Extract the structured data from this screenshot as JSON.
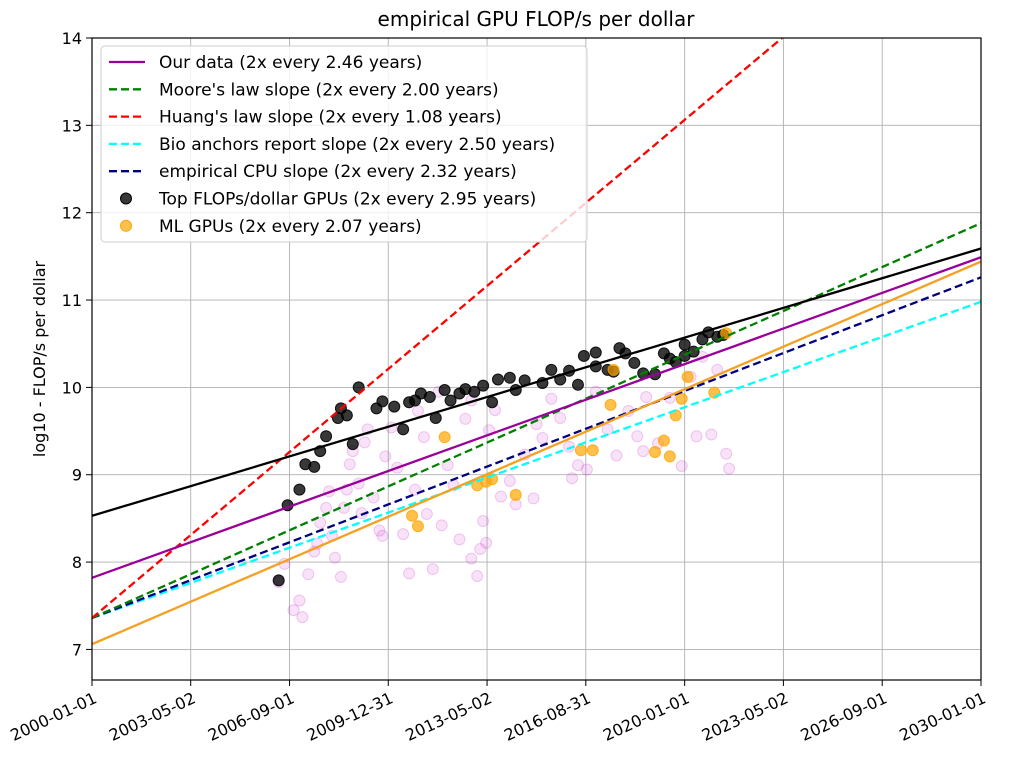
{
  "chart_data": {
    "type": "scatter",
    "title": "empirical GPU FLOP/s per dollar",
    "xlabel": "",
    "ylabel": "log10 - FLOP/s per dollar",
    "x_axis_type": "date",
    "xlim": [
      "2000-01-01",
      "2030-01-01"
    ],
    "ylim": [
      6.65,
      14.0
    ],
    "x_ticks": [
      "2000-01-01",
      "2003-05-02",
      "2006-09-01",
      "2009-12-31",
      "2013-05-02",
      "2016-08-31",
      "2020-01-01",
      "2023-05-02",
      "2026-09-01",
      "2030-01-01"
    ],
    "y_ticks": [
      7,
      8,
      9,
      10,
      11,
      12,
      13,
      14
    ],
    "grid": true,
    "legend_position": "top-left",
    "lines": [
      {
        "label": "Our data (2x every 2.46 years)",
        "color": "#990099",
        "dash": "solid",
        "in_legend": true,
        "points": [
          [
            "2000-01-01",
            7.82
          ],
          [
            "2030-01-01",
            11.49
          ]
        ]
      },
      {
        "label": "Moore's law slope (2x every 2.00 years)",
        "color": "#008000",
        "dash": "dashed",
        "in_legend": true,
        "points": [
          [
            "2000-01-01",
            7.36
          ],
          [
            "2030-01-01",
            11.88
          ]
        ]
      },
      {
        "label": "Huang's law slope (2x every 1.08 years)",
        "color": "#ff0000",
        "dash": "dashed",
        "in_legend": true,
        "points": [
          [
            "2000-01-01",
            7.36
          ],
          [
            "2023-04-15",
            14.0
          ]
        ]
      },
      {
        "label": "Bio anchors report slope (2x every 2.50 years)",
        "color": "#00ffff",
        "dash": "dashed",
        "in_legend": true,
        "points": [
          [
            "2000-01-01",
            7.36
          ],
          [
            "2030-01-01",
            10.98
          ]
        ]
      },
      {
        "label": "empirical CPU slope (2x every 2.32 years)",
        "color": "#000080",
        "dash": "dashed",
        "in_legend": true,
        "points": [
          [
            "2000-01-01",
            7.36
          ],
          [
            "2030-01-01",
            11.26
          ]
        ]
      },
      {
        "label": "",
        "color": "#000000",
        "dash": "solid",
        "in_legend": false,
        "points": [
          [
            "2000-01-01",
            8.53
          ],
          [
            "2030-01-01",
            11.59
          ]
        ]
      },
      {
        "label": "",
        "color": "#f5a020",
        "dash": "solid",
        "in_legend": false,
        "points": [
          [
            "2000-01-01",
            7.06
          ],
          [
            "2030-01-01",
            11.44
          ]
        ]
      }
    ],
    "scatter_series": [
      {
        "name": "Top FLOPs/dollar GPUs (2x every 2.95 years)",
        "color": "#000000",
        "alpha": 0.78,
        "in_legend": true,
        "points": [
          [
            2006.3,
            7.79
          ],
          [
            2006.6,
            8.65
          ],
          [
            2007.0,
            8.83
          ],
          [
            2007.2,
            9.12
          ],
          [
            2007.5,
            9.09
          ],
          [
            2007.7,
            9.27
          ],
          [
            2007.9,
            9.44
          ],
          [
            2008.3,
            9.65
          ],
          [
            2008.4,
            9.76
          ],
          [
            2008.6,
            9.68
          ],
          [
            2008.8,
            9.35
          ],
          [
            2009.0,
            10.0
          ],
          [
            2009.6,
            9.76
          ],
          [
            2009.8,
            9.84
          ],
          [
            2010.2,
            9.78
          ],
          [
            2010.5,
            9.52
          ],
          [
            2010.7,
            9.83
          ],
          [
            2010.9,
            9.85
          ],
          [
            2011.1,
            9.93
          ],
          [
            2011.4,
            9.89
          ],
          [
            2011.6,
            9.65
          ],
          [
            2011.9,
            9.97
          ],
          [
            2012.1,
            9.85
          ],
          [
            2012.4,
            9.93
          ],
          [
            2012.6,
            9.98
          ],
          [
            2012.9,
            9.95
          ],
          [
            2013.2,
            10.02
          ],
          [
            2013.5,
            9.83
          ],
          [
            2013.7,
            10.09
          ],
          [
            2014.1,
            10.11
          ],
          [
            2014.3,
            9.97
          ],
          [
            2014.6,
            10.08
          ],
          [
            2015.2,
            10.05
          ],
          [
            2015.5,
            10.2
          ],
          [
            2015.8,
            10.09
          ],
          [
            2016.1,
            10.19
          ],
          [
            2016.4,
            10.03
          ],
          [
            2016.6,
            10.36
          ],
          [
            2017.0,
            10.4
          ],
          [
            2017.0,
            10.24
          ],
          [
            2017.4,
            10.2
          ],
          [
            2017.6,
            10.18
          ],
          [
            2017.8,
            10.45
          ],
          [
            2018.0,
            10.39
          ],
          [
            2018.3,
            10.28
          ],
          [
            2018.6,
            10.16
          ],
          [
            2019.0,
            10.15
          ],
          [
            2019.3,
            10.39
          ],
          [
            2019.5,
            10.33
          ],
          [
            2019.7,
            10.29
          ],
          [
            2020.0,
            10.36
          ],
          [
            2020.0,
            10.49
          ],
          [
            2020.3,
            10.41
          ],
          [
            2020.6,
            10.55
          ],
          [
            2020.8,
            10.63
          ],
          [
            2021.1,
            10.58
          ],
          [
            2021.3,
            10.6
          ]
        ]
      },
      {
        "name": "ML GPUs (2x every 2.07 years)",
        "color": "#ffa500",
        "alpha": 0.7,
        "in_legend": true,
        "points": [
          [
            2010.8,
            8.53
          ],
          [
            2011.0,
            8.41
          ],
          [
            2011.9,
            9.43
          ],
          [
            2013.0,
            8.88
          ],
          [
            2013.3,
            8.92
          ],
          [
            2013.5,
            8.95
          ],
          [
            2014.3,
            8.77
          ],
          [
            2016.5,
            9.28
          ],
          [
            2016.9,
            9.28
          ],
          [
            2017.5,
            9.8
          ],
          [
            2017.6,
            10.2
          ],
          [
            2019.0,
            9.26
          ],
          [
            2019.3,
            9.39
          ],
          [
            2019.5,
            9.21
          ],
          [
            2019.7,
            9.68
          ],
          [
            2019.9,
            9.87
          ],
          [
            2020.1,
            10.12
          ],
          [
            2021.0,
            9.94
          ],
          [
            2021.4,
            10.62
          ]
        ]
      },
      {
        "name": "",
        "color": "#cc33cc",
        "alpha": 0.14,
        "in_legend": false,
        "points": [
          [
            2006.3,
            7.77
          ],
          [
            2006.5,
            7.98
          ],
          [
            2006.8,
            7.45
          ],
          [
            2007.0,
            7.56
          ],
          [
            2007.1,
            7.37
          ],
          [
            2007.3,
            7.86
          ],
          [
            2007.5,
            8.12
          ],
          [
            2007.6,
            8.21
          ],
          [
            2007.7,
            8.45
          ],
          [
            2007.9,
            8.62
          ],
          [
            2008.0,
            8.81
          ],
          [
            2008.1,
            8.3
          ],
          [
            2008.2,
            8.05
          ],
          [
            2008.4,
            7.83
          ],
          [
            2008.5,
            8.62
          ],
          [
            2008.6,
            8.83
          ],
          [
            2008.7,
            9.12
          ],
          [
            2008.8,
            9.27
          ],
          [
            2009.0,
            8.9
          ],
          [
            2009.1,
            8.56
          ],
          [
            2009.2,
            9.37
          ],
          [
            2009.3,
            9.52
          ],
          [
            2009.5,
            8.74
          ],
          [
            2009.7,
            8.36
          ],
          [
            2009.9,
            9.21
          ],
          [
            2010.1,
            9.54
          ],
          [
            2010.3,
            9.08
          ],
          [
            2010.5,
            8.32
          ],
          [
            2010.7,
            7.87
          ],
          [
            2010.9,
            8.83
          ],
          [
            2011.0,
            9.73
          ],
          [
            2011.2,
            9.43
          ],
          [
            2011.3,
            8.55
          ],
          [
            2011.5,
            7.92
          ],
          [
            2011.7,
            9.95
          ],
          [
            2012.0,
            9.11
          ],
          [
            2012.2,
            8.88
          ],
          [
            2012.4,
            8.26
          ],
          [
            2012.6,
            9.64
          ],
          [
            2012.8,
            9.85
          ],
          [
            2013.0,
            7.84
          ],
          [
            2013.1,
            8.15
          ],
          [
            2013.2,
            8.47
          ],
          [
            2013.4,
            9.51
          ],
          [
            2013.6,
            9.74
          ],
          [
            2013.8,
            8.75
          ],
          [
            2014.1,
            8.93
          ],
          [
            2014.3,
            8.66
          ],
          [
            2014.6,
            9.23
          ],
          [
            2014.9,
            8.73
          ],
          [
            2015.2,
            9.42
          ],
          [
            2015.5,
            9.87
          ],
          [
            2015.8,
            9.65
          ],
          [
            2016.1,
            9.32
          ],
          [
            2016.4,
            9.11
          ],
          [
            2016.7,
            9.06
          ],
          [
            2017.0,
            9.95
          ],
          [
            2017.4,
            9.52
          ],
          [
            2017.7,
            9.22
          ],
          [
            2018.1,
            9.73
          ],
          [
            2018.4,
            9.44
          ],
          [
            2018.7,
            9.89
          ],
          [
            2019.1,
            9.36
          ],
          [
            2019.5,
            9.88
          ],
          [
            2019.9,
            9.1
          ],
          [
            2020.2,
            10.12
          ],
          [
            2020.6,
            10.35
          ],
          [
            2020.9,
            9.46
          ],
          [
            2021.1,
            10.2
          ],
          [
            2021.4,
            9.24
          ],
          [
            2021.5,
            9.07
          ],
          [
            2020.4,
            9.44
          ],
          [
            2018.6,
            9.27
          ],
          [
            2015.0,
            9.58
          ],
          [
            2016.2,
            8.96
          ],
          [
            2009.8,
            8.3
          ],
          [
            2012.8,
            8.04
          ],
          [
            2013.3,
            8.22
          ],
          [
            2011.8,
            8.42
          ]
        ]
      }
    ],
    "legend_entries": [
      {
        "label": "Our data (2x every 2.46 years)",
        "color": "#990099",
        "kind": "line"
      },
      {
        "label": "Moore's law slope (2x every 2.00 years)",
        "color": "#008000",
        "kind": "dashed"
      },
      {
        "label": "Huang's law slope (2x every 1.08 years)",
        "color": "#ff0000",
        "kind": "dashed"
      },
      {
        "label": "Bio anchors report slope (2x every 2.50 years)",
        "color": "#00ffff",
        "kind": "dashed"
      },
      {
        "label": "empirical CPU slope (2x every 2.32 years)",
        "color": "#000080",
        "kind": "dashed"
      },
      {
        "label": "Top FLOPs/dollar GPUs (2x every 2.95 years)",
        "color": "#000000",
        "kind": "marker",
        "alpha": 0.78
      },
      {
        "label": "ML GPUs (2x every 2.07 years)",
        "color": "#ffa500",
        "kind": "marker",
        "alpha": 0.7
      }
    ]
  }
}
